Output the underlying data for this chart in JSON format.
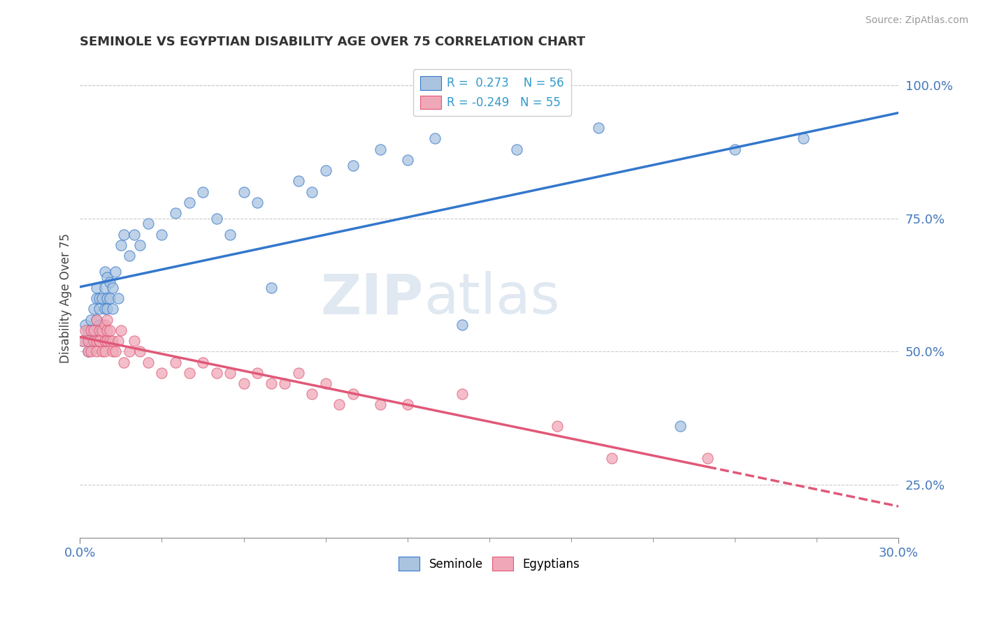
{
  "title": "SEMINOLE VS EGYPTIAN DISABILITY AGE OVER 75 CORRELATION CHART",
  "source": "Source: ZipAtlas.com",
  "ylabel": "Disability Age Over 75",
  "xlim": [
    0.0,
    0.3
  ],
  "ylim": [
    0.15,
    1.05
  ],
  "x_ticks": [
    0.0,
    0.3
  ],
  "x_tick_labels": [
    "0.0%",
    "30.0%"
  ],
  "y_ticks": [
    0.25,
    0.5,
    0.75,
    1.0
  ],
  "y_tick_labels": [
    "25.0%",
    "50.0%",
    "75.0%",
    "100.0%"
  ],
  "legend_r1": "R =  0.273",
  "legend_n1": "N = 56",
  "legend_r2": "R = -0.249",
  "legend_n2": "N = 55",
  "seminole_color": "#aac4e0",
  "egyptian_color": "#f0a8b8",
  "trendline_seminole_color": "#3377cc",
  "trendline_egyptian_color": "#e05878",
  "watermark_zip": "ZIP",
  "watermark_atlas": "atlas",
  "seminole_x": [
    0.001,
    0.002,
    0.003,
    0.003,
    0.004,
    0.004,
    0.005,
    0.005,
    0.006,
    0.006,
    0.006,
    0.007,
    0.007,
    0.007,
    0.008,
    0.008,
    0.009,
    0.009,
    0.009,
    0.01,
    0.01,
    0.01,
    0.011,
    0.011,
    0.012,
    0.012,
    0.013,
    0.014,
    0.015,
    0.016,
    0.018,
    0.02,
    0.022,
    0.025,
    0.03,
    0.035,
    0.04,
    0.045,
    0.05,
    0.055,
    0.06,
    0.065,
    0.07,
    0.08,
    0.085,
    0.09,
    0.1,
    0.11,
    0.12,
    0.13,
    0.14,
    0.16,
    0.19,
    0.22,
    0.24,
    0.265
  ],
  "seminole_y": [
    0.52,
    0.55,
    0.5,
    0.54,
    0.52,
    0.56,
    0.54,
    0.58,
    0.56,
    0.6,
    0.62,
    0.55,
    0.58,
    0.6,
    0.55,
    0.6,
    0.58,
    0.62,
    0.65,
    0.58,
    0.6,
    0.64,
    0.6,
    0.63,
    0.58,
    0.62,
    0.65,
    0.6,
    0.7,
    0.72,
    0.68,
    0.72,
    0.7,
    0.74,
    0.72,
    0.76,
    0.78,
    0.8,
    0.75,
    0.72,
    0.8,
    0.78,
    0.62,
    0.82,
    0.8,
    0.84,
    0.85,
    0.88,
    0.86,
    0.9,
    0.55,
    0.88,
    0.92,
    0.36,
    0.88,
    0.9
  ],
  "egyptian_x": [
    0.001,
    0.002,
    0.003,
    0.003,
    0.004,
    0.004,
    0.005,
    0.005,
    0.006,
    0.006,
    0.006,
    0.007,
    0.007,
    0.007,
    0.008,
    0.008,
    0.009,
    0.009,
    0.009,
    0.01,
    0.01,
    0.01,
    0.011,
    0.011,
    0.012,
    0.012,
    0.013,
    0.014,
    0.015,
    0.016,
    0.018,
    0.02,
    0.022,
    0.025,
    0.03,
    0.035,
    0.04,
    0.045,
    0.05,
    0.055,
    0.06,
    0.065,
    0.07,
    0.075,
    0.08,
    0.085,
    0.09,
    0.095,
    0.1,
    0.11,
    0.12,
    0.14,
    0.175,
    0.195,
    0.23
  ],
  "egyptian_y": [
    0.52,
    0.54,
    0.5,
    0.52,
    0.5,
    0.54,
    0.52,
    0.54,
    0.5,
    0.52,
    0.56,
    0.52,
    0.54,
    0.52,
    0.5,
    0.54,
    0.5,
    0.52,
    0.55,
    0.52,
    0.54,
    0.56,
    0.52,
    0.54,
    0.5,
    0.52,
    0.5,
    0.52,
    0.54,
    0.48,
    0.5,
    0.52,
    0.5,
    0.48,
    0.46,
    0.48,
    0.46,
    0.48,
    0.46,
    0.46,
    0.44,
    0.46,
    0.44,
    0.44,
    0.46,
    0.42,
    0.44,
    0.4,
    0.42,
    0.4,
    0.4,
    0.42,
    0.36,
    0.3,
    0.3
  ]
}
